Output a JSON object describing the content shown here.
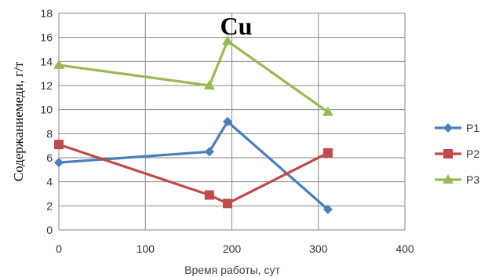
{
  "chart_data": {
    "type": "line",
    "title": "Cu",
    "xlabel": "Время работы, сут",
    "ylabel": "Содержаниемеди, г/т",
    "xlim": [
      0,
      400
    ],
    "ylim": [
      0,
      18
    ],
    "x_ticks": [
      0,
      100,
      200,
      300,
      400
    ],
    "y_ticks": [
      0,
      2,
      4,
      6,
      8,
      10,
      12,
      14,
      16,
      18
    ],
    "grid": true,
    "legend_position": "right",
    "series": [
      {
        "name": "P1",
        "color": "#4a7ebb",
        "marker": "diamond",
        "points": [
          [
            0,
            5.6
          ],
          [
            174,
            6.5
          ],
          [
            195,
            9.0
          ],
          [
            311,
            1.7
          ]
        ]
      },
      {
        "name": "P2",
        "color": "#be4b48",
        "marker": "square",
        "points": [
          [
            0,
            7.1
          ],
          [
            174,
            2.9
          ],
          [
            195,
            2.2
          ],
          [
            311,
            6.4
          ]
        ]
      },
      {
        "name": "P3",
        "color": "#98b954",
        "marker": "triangle",
        "points": [
          [
            0,
            13.7
          ],
          [
            174,
            12.0
          ],
          [
            195,
            15.7
          ],
          [
            311,
            9.8
          ]
        ]
      }
    ]
  }
}
